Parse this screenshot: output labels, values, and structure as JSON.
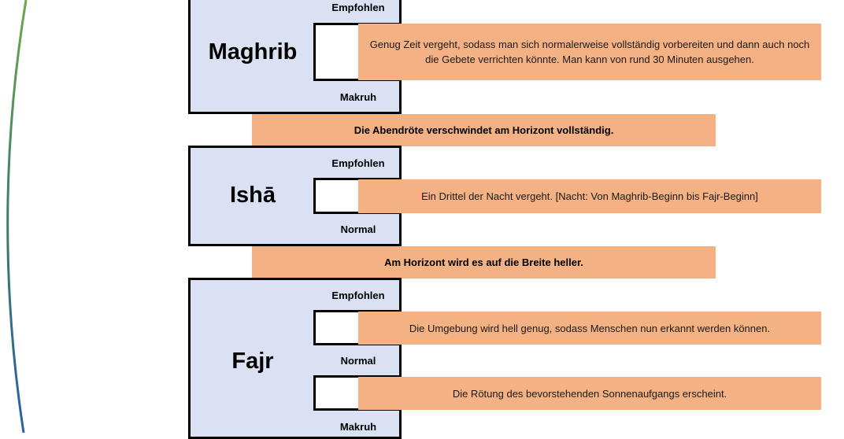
{
  "prayers": {
    "maghrib": {
      "name": "Maghrib",
      "phase_top": "Empfohlen",
      "phase_bottom": "Makruh",
      "desc": "Genug Zeit vergeht, sodass man sich normalerweise vollständig vorbereiten und dann auch noch die Gebete verrichten könnte. Man kann von rund 30 Minuten ausgehen."
    },
    "isha": {
      "name": "Ishā",
      "phase_top": "Empfohlen",
      "phase_bottom": "Normal",
      "desc": "Ein Drittel der Nacht vergeht. [Nacht: Von Maghrib-Beginn bis Fajr-Beginn]"
    },
    "fajr": {
      "name": "Fajr",
      "phase_top": "Empfohlen",
      "phase_middle": "Normal",
      "phase_bottom": "Makruh",
      "desc_1": "Die Umgebung wird hell genug, sodass Menschen nun erkannt werden können.",
      "desc_2": "Die Rötung des bevorstehenden Sonnenaufgangs erscheint."
    }
  },
  "transitions": {
    "after_maghrib": "Die Abendröte verschwindet am Horizont vollständig.",
    "after_isha": "Am Horizont wird es auf die Breite heller."
  },
  "colors": {
    "block_fill": "#d9e1f2",
    "annotation_fill": "#f4b183",
    "arc_top": "#6aa84f",
    "arc_bottom": "#2e5fa8"
  }
}
